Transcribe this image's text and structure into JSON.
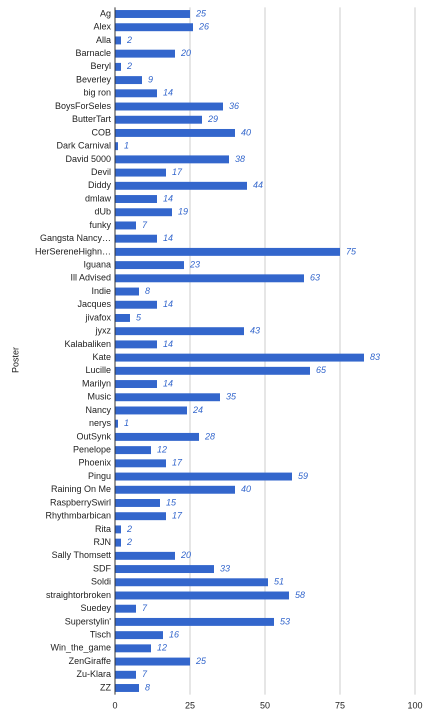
{
  "chart_data": {
    "type": "hbar",
    "y_axis_label": "Poster",
    "categories": [
      "Ag",
      "Alex",
      "Alla",
      "Barnacle",
      "Beryl",
      "Beverley",
      "big ron",
      "BoysForSeles",
      "ButterTart",
      "COB",
      "Dark Carnival",
      "David 5000",
      "Devil",
      "Diddy",
      "dmlaw",
      "dUb",
      "funky",
      "Gangsta Nancy…",
      "HerSereneHighn…",
      "Iguana",
      "Ill Advised",
      "Indie",
      "Jacques",
      "jivafox",
      "jyxz",
      "Kalabaliken",
      "Kate",
      "Lucille",
      "Marilyn",
      "Music",
      "Nancy",
      "nerys",
      "OutSynk",
      "Penelope",
      "Phoenix",
      "Pingu",
      "Raining On Me",
      "RaspberrySwirl",
      "Rhythmbarbican",
      "Rita",
      "RJN",
      "Sally Thomsett",
      "SDF",
      "Soldi",
      "straightorbroken",
      "Suedey",
      "Superstylin'",
      "Tisch",
      "Win_the_game",
      "ZenGiraffe",
      "Zu-Klara",
      "ZZ"
    ],
    "values": [
      25,
      26,
      2,
      20,
      2,
      9,
      14,
      36,
      29,
      40,
      1,
      38,
      17,
      44,
      14,
      19,
      7,
      14,
      75,
      23,
      63,
      8,
      14,
      5,
      43,
      14,
      83,
      65,
      14,
      35,
      24,
      1,
      28,
      12,
      17,
      59,
      40,
      15,
      17,
      2,
      2,
      20,
      33,
      51,
      58,
      7,
      53,
      16,
      12,
      25,
      7,
      8
    ],
    "color": "#3366cc",
    "xlim": [
      0,
      100
    ],
    "xticks": [
      0,
      25,
      50,
      75,
      100
    ],
    "grid": true
  }
}
